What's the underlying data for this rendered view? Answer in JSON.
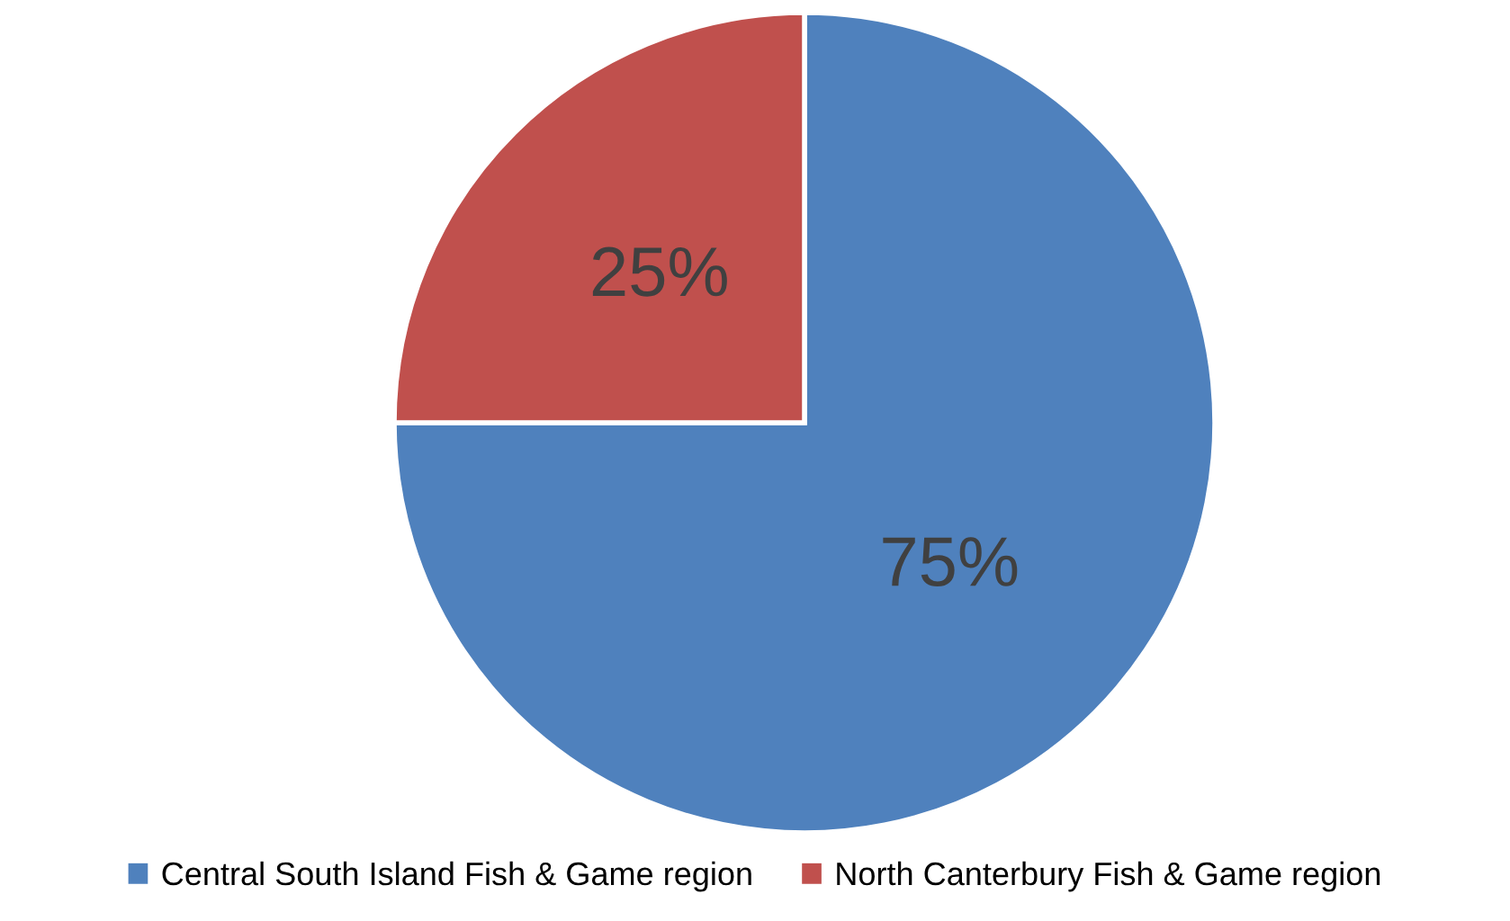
{
  "chart_data": {
    "type": "pie",
    "categories": [
      "Central South Island Fish & Game region",
      "North Canterbury Fish & Game region"
    ],
    "values": [
      75,
      25
    ],
    "colors": [
      "#4f81bd",
      "#c0504d"
    ],
    "value_labels": [
      "75%",
      "25%"
    ],
    "legend": "bottom"
  }
}
